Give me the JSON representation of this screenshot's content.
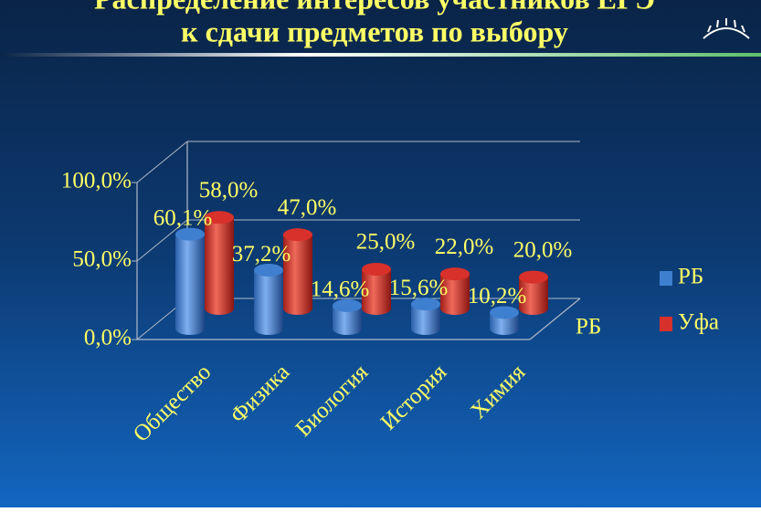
{
  "chart_data": {
    "type": "bar3d",
    "title": "Распределение интересов участников ЕГЭ",
    "subtitle": "к сдачи предметов по выбору",
    "categories": [
      "Общество",
      "Физика",
      "Биология",
      "История",
      "Химия"
    ],
    "series": [
      {
        "name": "РБ",
        "color": "#3f7fd0",
        "values": [
          60.1,
          37.2,
          14.6,
          15.6,
          10.2
        ],
        "value_labels": [
          "60,1%",
          "37,2%",
          "14,6%",
          "15,6%",
          "10,2%"
        ]
      },
      {
        "name": "Уфа",
        "color": "#d8302a",
        "values": [
          58.0,
          47.0,
          25.0,
          22.0,
          20.0
        ],
        "value_labels": [
          "58,0%",
          "47,0%",
          "25,0%",
          "22,0%",
          "20,0%"
        ]
      }
    ],
    "depth_label": "РБ",
    "ylim": [
      0,
      100
    ],
    "yticks": [
      {
        "value": 0,
        "label": "0,0%"
      },
      {
        "value": 50,
        "label": "50,0%"
      },
      {
        "value": 100,
        "label": "100,0%"
      }
    ],
    "grid": true,
    "legend": "right"
  }
}
